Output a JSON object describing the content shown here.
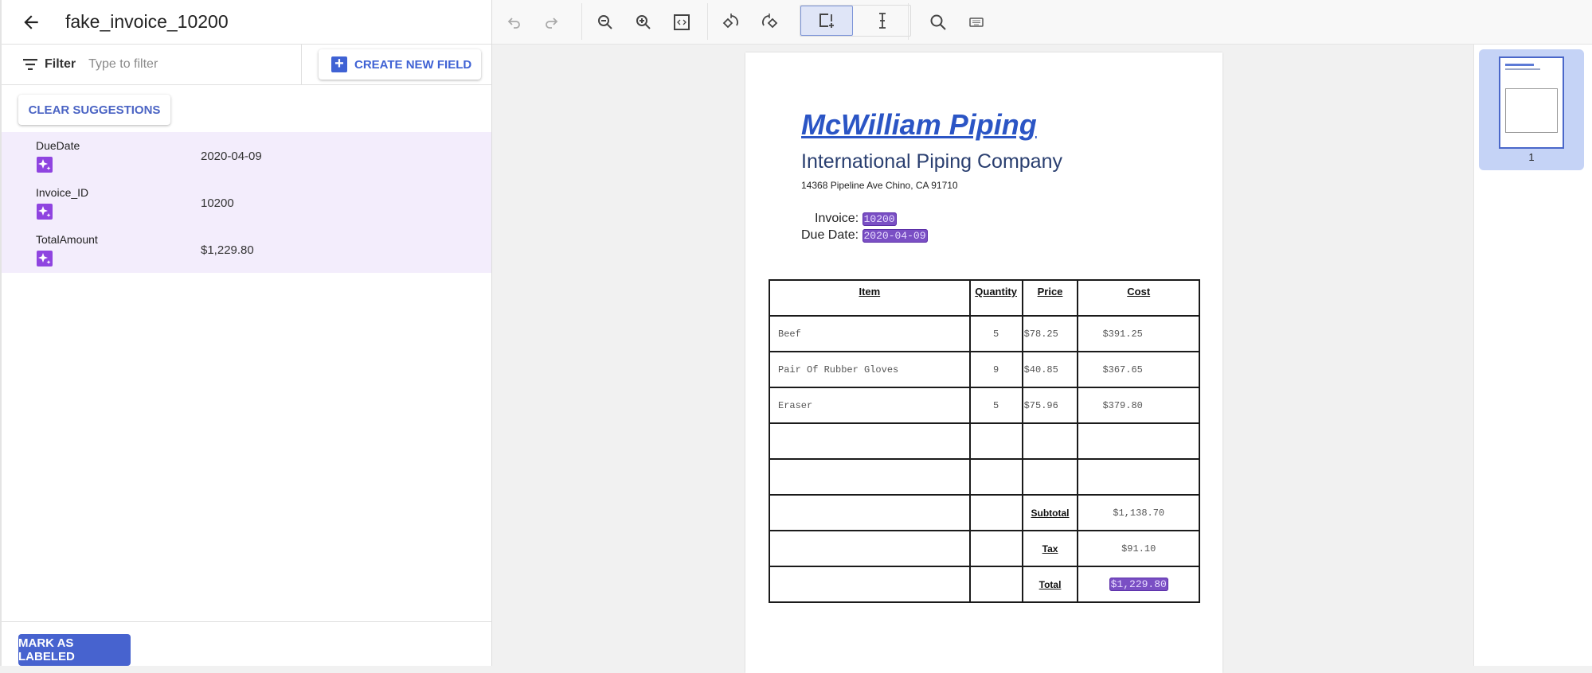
{
  "header": {
    "title": "fake_invoice_10200",
    "back_icon": "arrow-left-icon"
  },
  "filter": {
    "label": "Filter",
    "placeholder": "Type to filter",
    "value": ""
  },
  "buttons": {
    "create_new_field": "CREATE NEW FIELD",
    "clear_suggestions": "CLEAR SUGGESTIONS",
    "mark_as_labeled": "MARK AS LABELED"
  },
  "fields": [
    {
      "name": "DueDate",
      "value": "2020-04-09",
      "icon": "sparkle-icon"
    },
    {
      "name": "Invoice_ID",
      "value": "10200",
      "icon": "sparkle-icon"
    },
    {
      "name": "TotalAmount",
      "value": "$1,229.80",
      "icon": "sparkle-icon"
    }
  ],
  "toolbar": [
    "undo-icon",
    "redo-icon",
    "zoom-out-icon",
    "zoom-in-icon",
    "fit-icon",
    "rotate-left-icon",
    "rotate-right-icon",
    "bounding-box-icon",
    "text-select-icon",
    "search-icon",
    "keyboard-icon"
  ],
  "colors": {
    "accent": "#3f62d4",
    "suggestion_bg": "#f3edfc",
    "sparkle": "#8f44e0",
    "highlight": "#7a4fc4"
  },
  "document": {
    "company": "McWilliam Piping",
    "subtitle": "International Piping Company",
    "address": "14368 Pipeline Ave Chino, CA 91710",
    "invoice_label": "Invoice:",
    "invoice_value": "10200",
    "due_label": "Due Date:",
    "due_value": "2020-04-09",
    "table": {
      "headers": [
        "Item",
        "Quantity",
        "Price",
        "Cost"
      ],
      "rows": [
        [
          "Beef",
          "5",
          "$78.25",
          "$391.25"
        ],
        [
          "Pair Of Rubber Gloves",
          "9",
          "$40.85",
          "$367.65"
        ],
        [
          "Eraser",
          "5",
          "$75.96",
          "$379.80"
        ],
        [
          "",
          "",
          "",
          ""
        ],
        [
          "",
          "",
          "",
          ""
        ]
      ],
      "subtotal_label": "Subtotal",
      "subtotal": "$1,138.70",
      "tax_label": "Tax",
      "tax": "$91.10",
      "total_label": "Total",
      "total": "$1,229.80"
    }
  },
  "thumbnails": [
    {
      "page": "1",
      "selected": true
    }
  ]
}
